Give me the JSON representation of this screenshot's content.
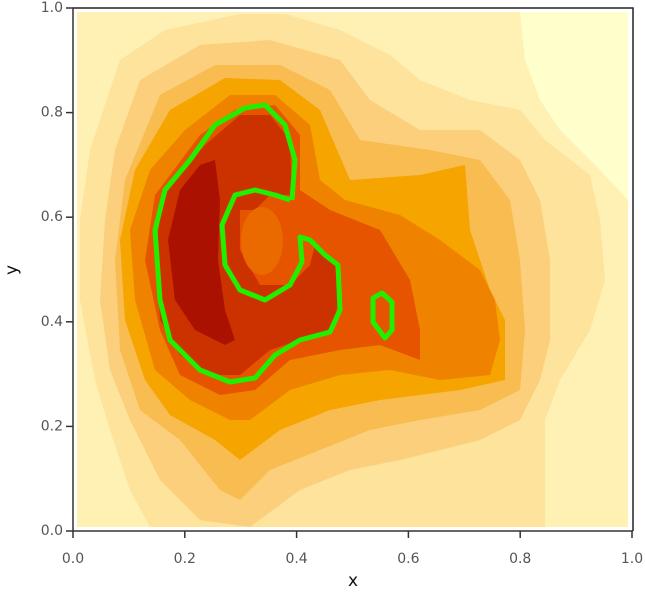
{
  "chart_data": {
    "type": "contour",
    "x_label": "x",
    "y_label": "y",
    "xlim": [
      0,
      1
    ],
    "ylim": [
      0,
      1
    ],
    "xticks": [
      {
        "value": 0,
        "label": "0.0"
      },
      {
        "value": 0.2,
        "label": "0.2"
      },
      {
        "value": 0.4,
        "label": "0.4"
      },
      {
        "value": 0.6,
        "label": "0.6"
      },
      {
        "value": 0.8,
        "label": "0.8"
      },
      {
        "value": 1,
        "label": "1.0"
      }
    ],
    "yticks": [
      {
        "value": 0,
        "label": "0.0"
      },
      {
        "value": 0.2,
        "label": "0.2"
      },
      {
        "value": 0.4,
        "label": "0.4"
      },
      {
        "value": 0.6,
        "label": "0.6"
      },
      {
        "value": 0.8,
        "label": "0.8"
      },
      {
        "value": 1,
        "label": "1.0"
      }
    ]
  }
}
